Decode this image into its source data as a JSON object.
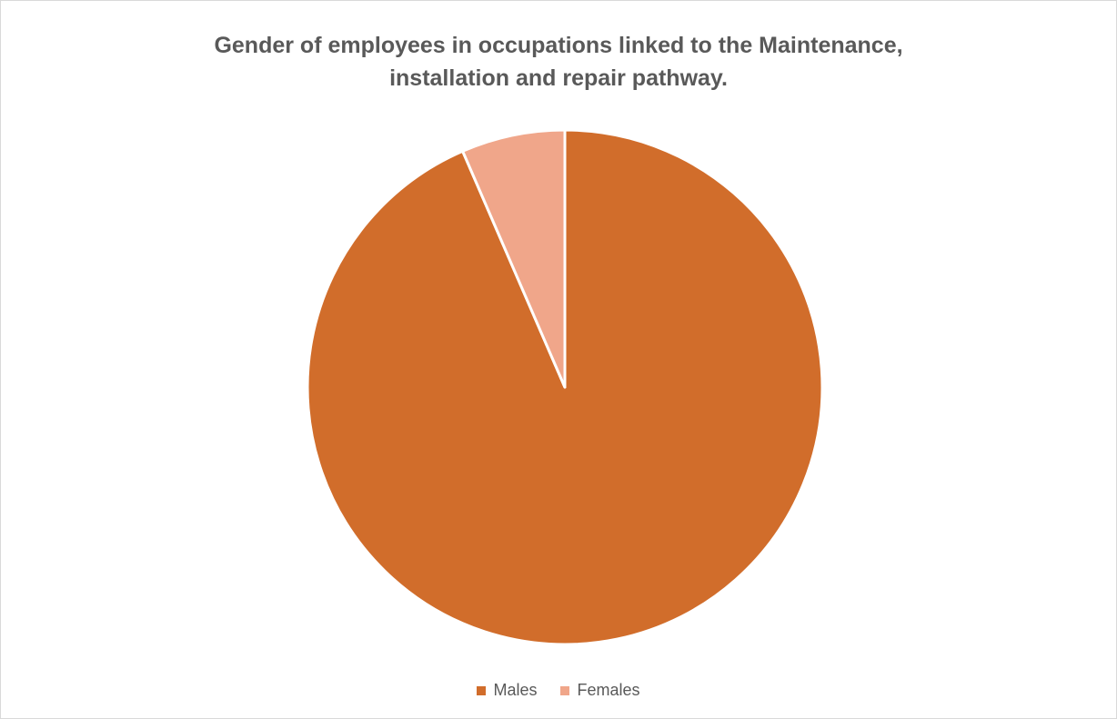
{
  "chart_data": {
    "type": "pie",
    "title_lines": [
      "Gender of employees in occupations linked to the Maintenance,",
      "installation and repair pathway."
    ],
    "slices": [
      {
        "label": "Males",
        "value": 93.5,
        "color": "#d16d2b"
      },
      {
        "label": "Females",
        "value": 6.5,
        "color": "#f0a68a"
      }
    ],
    "legend_position": "bottom",
    "slice_border_color": "#ffffff"
  }
}
